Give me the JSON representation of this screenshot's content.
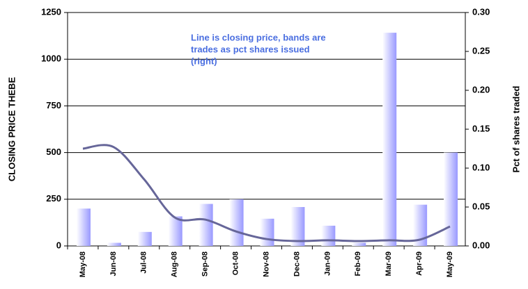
{
  "chart_data": {
    "type": "combo",
    "annotation": [
      "Line is closing price, bands are",
      "trades as pct shares issued",
      "(right)"
    ],
    "ylabel": "CLOSING PRICE THEBE",
    "y2label": "Pct of shares traded",
    "categories": [
      "May-08",
      "Jun-08",
      "Jul-08",
      "Aug-08",
      "Sep-08",
      "Oct-08",
      "Nov-08",
      "Dec-08",
      "Jan-09",
      "Feb-09",
      "Mar-09",
      "Apr-09",
      "May-09"
    ],
    "series": [
      {
        "type": "bar",
        "axis": "y2",
        "color": "#9999ff",
        "values": [
          0.048,
          0.004,
          0.018,
          0.038,
          0.054,
          0.06,
          0.035,
          0.05,
          0.026,
          0.004,
          0.274,
          0.053,
          0.12
        ]
      },
      {
        "type": "line",
        "color": "#666699",
        "values": [
          521,
          530,
          357,
          153,
          141,
          78,
          37,
          26,
          30,
          26,
          30,
          33,
          104
        ]
      }
    ],
    "ylim": [
      0,
      1250
    ],
    "yticks": [
      0,
      250,
      500,
      750,
      1000,
      1250
    ],
    "y2lim": [
      0,
      0.3
    ],
    "y2ticks": [
      {
        "value": 0,
        "label": "0.00"
      },
      {
        "value": 0.05,
        "label": "0.05"
      },
      {
        "value": 0.1,
        "label": "0.10"
      },
      {
        "value": 0.15,
        "label": "0.15"
      },
      {
        "value": 0.2,
        "label": "0.20"
      },
      {
        "value": 0.25,
        "label": "0.25"
      },
      {
        "value": 0.3,
        "label": "0.30"
      }
    ],
    "grid": true
  }
}
